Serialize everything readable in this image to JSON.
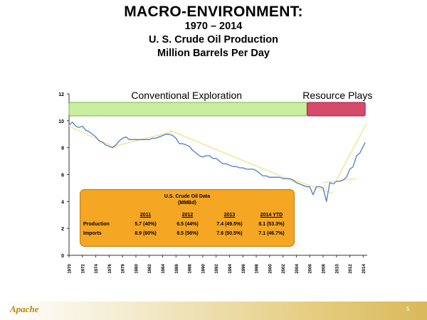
{
  "header": {
    "title": "MACRO-ENVIRONMENT:",
    "years": "1970 – 2014",
    "subject": "U. S. Crude Oil Production",
    "units": "Million Barrels Per Day"
  },
  "chart_data": {
    "type": "line",
    "title": "U. S. Crude Oil Production",
    "ylim": [
      0,
      12
    ],
    "xlim": [
      1970,
      2014.6
    ],
    "y_ticks": [
      "0",
      "2",
      "4",
      "6",
      "8",
      "10",
      "12"
    ],
    "x_ticks": [
      "1970",
      "1972",
      "1974",
      "1976",
      "1978",
      "1980",
      "1982",
      "1984",
      "1986",
      "1988",
      "1990",
      "1992",
      "1994",
      "1996",
      "1998",
      "2000",
      "2002",
      "2004",
      "2006",
      "2008",
      "2010",
      "2012",
      "2014"
    ],
    "grid": false,
    "series": [
      {
        "color": "#4a7fc1",
        "x": [
          1970,
          1970.5,
          1971,
          1971.5,
          1972,
          1972.5,
          1973,
          1973.5,
          1974,
          1974.5,
          1975,
          1975.5,
          1976,
          1976.5,
          1977,
          1977.5,
          1978,
          1978.5,
          1979,
          1979.5,
          1980,
          1980.5,
          1981,
          1981.5,
          1982,
          1982.5,
          1983,
          1983.5,
          1984,
          1984.5,
          1985,
          1985.5,
          1986,
          1986.5,
          1987,
          1987.5,
          1988,
          1988.5,
          1989,
          1989.5,
          1990,
          1990.5,
          1991,
          1991.5,
          1992,
          1992.5,
          1993,
          1993.5,
          1994,
          1994.5,
          1995,
          1995.5,
          1996,
          1996.5,
          1997,
          1997.5,
          1998,
          1998.5,
          1999,
          1999.5,
          2000,
          2000.5,
          2001,
          2001.5,
          2002,
          2002.5,
          2003,
          2003.5,
          2004,
          2004.5,
          2005,
          2005.5,
          2006,
          2006.5,
          2007,
          2007.5,
          2008,
          2008.5,
          2009,
          2009.5,
          2010,
          2010.5,
          2011,
          2011.5,
          2012,
          2012.5,
          2013,
          2013.5,
          2014,
          2014.3
        ],
        "values": [
          9.7,
          9.9,
          9.6,
          9.5,
          9.6,
          9.3,
          9.2,
          9.0,
          8.8,
          8.5,
          8.4,
          8.2,
          8.1,
          8.0,
          8.2,
          8.5,
          8.7,
          8.8,
          8.6,
          8.6,
          8.6,
          8.6,
          8.6,
          8.6,
          8.6,
          8.7,
          8.7,
          8.8,
          8.9,
          9.0,
          9.0,
          8.9,
          8.7,
          8.3,
          8.3,
          8.2,
          8.1,
          7.8,
          7.6,
          7.4,
          7.3,
          7.4,
          7.4,
          7.2,
          7.2,
          7.0,
          6.8,
          6.8,
          6.7,
          6.6,
          6.6,
          6.5,
          6.5,
          6.4,
          6.4,
          6.4,
          6.3,
          6.1,
          5.9,
          5.9,
          5.8,
          5.8,
          5.8,
          5.8,
          5.7,
          5.7,
          5.7,
          5.6,
          5.4,
          5.3,
          5.2,
          5.1,
          5.1,
          4.5,
          5.1,
          5.1,
          5.0,
          4.0,
          5.4,
          5.3,
          5.5,
          5.5,
          5.6,
          5.8,
          6.4,
          6.6,
          7.4,
          7.6,
          8.1,
          8.4
        ]
      }
    ],
    "bands": [
      {
        "label": "Conventional Exploration",
        "from": 1970,
        "to": 2005.6,
        "fill": "#c9eea0",
        "stroke": "#7ab648"
      },
      {
        "label": "Resource Plays",
        "from": 2005.6,
        "to": 2014.3,
        "fill": "#d64a6a",
        "stroke": "#a02040"
      }
    ]
  },
  "info_box": {
    "title": "U.S. Crude Oil Data",
    "subtitle": "(MMBd)",
    "headers": [
      "2011",
      "2012",
      "2013",
      "2014 YTD"
    ],
    "rows": [
      {
        "label": "Production",
        "values": [
          "5.7 (40%)",
          "6.5 (44%)",
          "7.4 (49.5%)",
          "8.1 (53.3%)"
        ]
      },
      {
        "label": "Imports",
        "values": [
          "8.9 (60%)",
          "8.5 (56%)",
          "7.6 (50.5%)",
          "7.1 (46.7%)"
        ]
      }
    ]
  },
  "footer": {
    "logo": "Apache",
    "page_number": "5"
  }
}
